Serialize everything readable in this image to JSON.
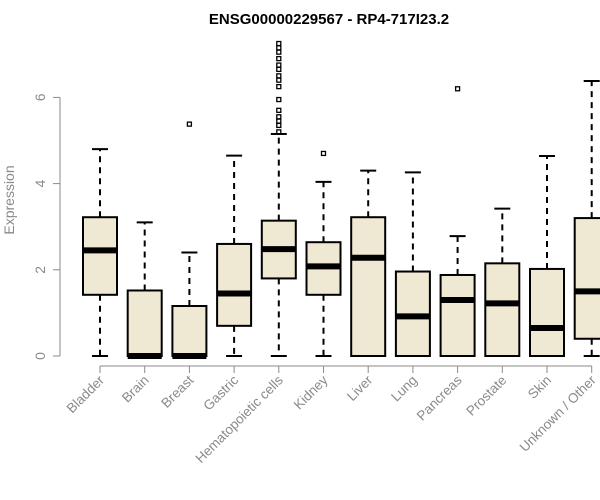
{
  "chart_data": {
    "type": "boxplot",
    "title": "ENSG00000229567 - RP4-717I23.2",
    "xlabel": "",
    "ylabel": "Expression",
    "ylim": [
      0,
      7.3
    ],
    "yticks": [
      0,
      2,
      4,
      6
    ],
    "grid": false,
    "box_color": "#efe8d2",
    "categories": [
      "Bladder",
      "Brain",
      "Breast",
      "Gastric",
      "Hematopoietic cells",
      "Kidney",
      "Liver",
      "Lung",
      "Pancreas",
      "Prostate",
      "Skin",
      "Unknown / Other"
    ],
    "boxes": [
      {
        "min": 0,
        "q1": 1.42,
        "median": 2.45,
        "q3": 3.22,
        "max": 4.8,
        "outliers": []
      },
      {
        "min": 0,
        "q1": 0,
        "median": 0,
        "q3": 1.52,
        "max": 3.1,
        "outliers": []
      },
      {
        "min": 0,
        "q1": 0,
        "median": 0,
        "q3": 1.16,
        "max": 2.4,
        "outliers": [
          5.38
        ]
      },
      {
        "min": 0,
        "q1": 0.7,
        "median": 1.45,
        "q3": 2.6,
        "max": 4.65,
        "outliers": []
      },
      {
        "min": 0,
        "q1": 1.8,
        "median": 2.48,
        "q3": 3.14,
        "max": 5.15,
        "outliers": [
          5.2,
          5.35,
          5.45,
          5.55,
          5.7,
          5.95,
          6.25,
          6.4,
          6.5,
          6.65,
          6.75,
          6.9,
          7.05,
          7.15,
          7.25
        ]
      },
      {
        "min": 0,
        "q1": 1.42,
        "median": 2.08,
        "q3": 2.64,
        "max": 4.04,
        "outliers": [
          4.7
        ]
      },
      {
        "min": 0,
        "q1": 0,
        "median": 2.28,
        "q3": 3.22,
        "max": 4.3,
        "outliers": []
      },
      {
        "min": 0,
        "q1": 0,
        "median": 0.92,
        "q3": 1.96,
        "max": 4.26,
        "outliers": []
      },
      {
        "min": 0,
        "q1": 0,
        "median": 1.3,
        "q3": 1.88,
        "max": 2.78,
        "outliers": [
          6.2
        ]
      },
      {
        "min": 0,
        "q1": 0,
        "median": 1.22,
        "q3": 2.15,
        "max": 3.42,
        "outliers": []
      },
      {
        "min": 0,
        "q1": 0,
        "median": 0.65,
        "q3": 2.02,
        "max": 4.64,
        "outliers": []
      },
      {
        "min": 0,
        "q1": 0.4,
        "median": 1.5,
        "q3": 3.2,
        "max": 6.38,
        "outliers": []
      }
    ]
  }
}
